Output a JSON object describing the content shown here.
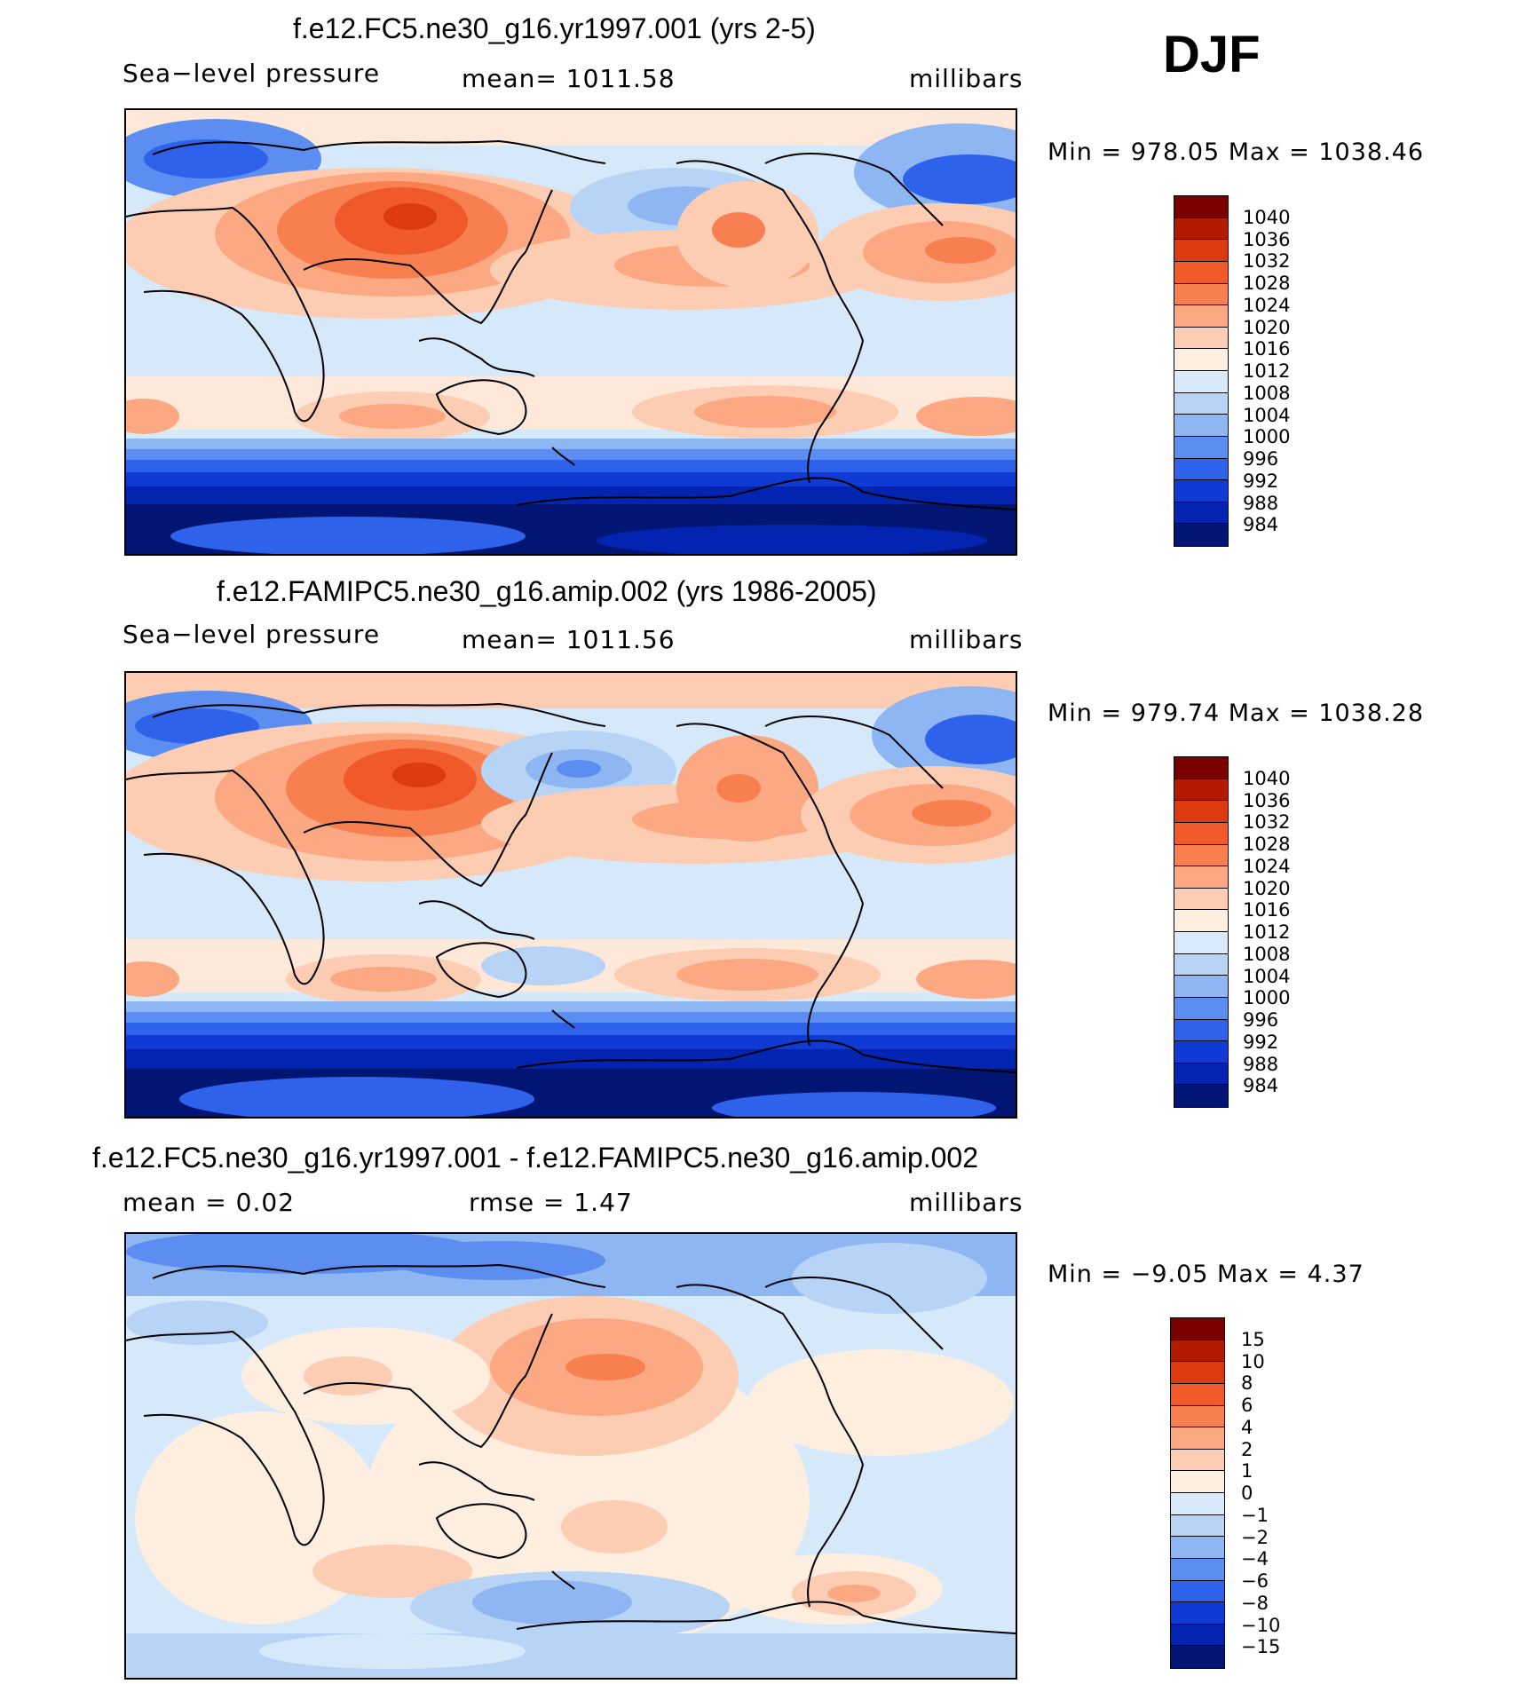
{
  "season": "DJF",
  "panels": [
    {
      "title": "f.e12.FC5.ne30_g16.yr1997.001 (yrs 2-5)",
      "left": "Sea−level  pressure",
      "center": "mean=  1011.58",
      "right": "millibars",
      "minmax": "Min  =  978.05  Max  =  1038.46",
      "colorbar": {
        "colors": [
          "#7a0000",
          "#b31b00",
          "#dc3a10",
          "#f05a2a",
          "#f88050",
          "#fba883",
          "#fccdb2",
          "#feeee0",
          "#d8eafb",
          "#b7d4f6",
          "#8eb6f2",
          "#5b8ef0",
          "#2e62ea",
          "#0f3ad4",
          "#0224b0",
          "#011575"
        ],
        "labels": [
          "1040",
          "1036",
          "1032",
          "1028",
          "1024",
          "1020",
          "1016",
          "1012",
          "1008",
          "1004",
          "1000",
          "996",
          "992",
          "988",
          "984"
        ]
      }
    },
    {
      "title": "f.e12.FAMIPC5.ne30_g16.amip.002 (yrs 1986-2005)",
      "left": "Sea−level  pressure",
      "center": "mean=  1011.56",
      "right": "millibars",
      "minmax": "Min  =  979.74  Max  =  1038.28",
      "colorbar": {
        "colors": [
          "#7a0000",
          "#b31b00",
          "#dc3a10",
          "#f05a2a",
          "#f88050",
          "#fba883",
          "#fccdb2",
          "#feeee0",
          "#d8eafb",
          "#b7d4f6",
          "#8eb6f2",
          "#5b8ef0",
          "#2e62ea",
          "#0f3ad4",
          "#0224b0",
          "#011575"
        ],
        "labels": [
          "1040",
          "1036",
          "1032",
          "1028",
          "1024",
          "1020",
          "1016",
          "1012",
          "1008",
          "1004",
          "1000",
          "996",
          "992",
          "988",
          "984"
        ]
      }
    },
    {
      "title": "f.e12.FC5.ne30_g16.yr1997.001 - f.e12.FAMIPC5.ne30_g16.amip.002",
      "left": "mean  =       0.02",
      "center": "rmse  =       1.47",
      "right": "millibars",
      "minmax": "Min  =    −9.05  Max  =        4.37",
      "colorbar": {
        "colors": [
          "#7a0000",
          "#b31b00",
          "#dc3a10",
          "#f05a2a",
          "#f88050",
          "#fba883",
          "#fccdb2",
          "#feeee0",
          "#d8eafb",
          "#b7d4f6",
          "#8eb6f2",
          "#5b8ef0",
          "#2e62ea",
          "#0f3ad4",
          "#0224b0",
          "#011575"
        ],
        "labels": [
          "15",
          "10",
          "8",
          "6",
          "4",
          "2",
          "1",
          "0",
          "−1",
          "−2",
          "−4",
          "−6",
          "−8",
          "−10",
          "−15"
        ]
      }
    }
  ]
}
